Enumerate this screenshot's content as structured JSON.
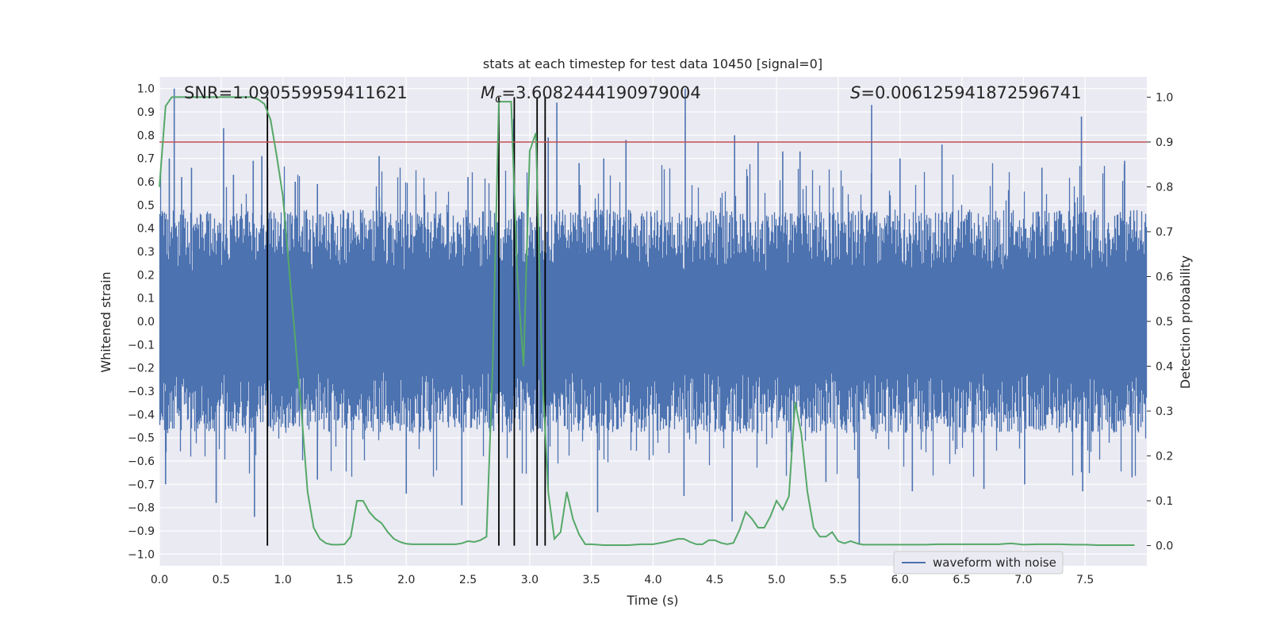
{
  "chart_data": {
    "type": "line",
    "title": "stats at each timestep for test data 10450 [signal=0]",
    "xlabel": "Time (s)",
    "ylabel": "Whitened strain",
    "y2label": "Detection probability",
    "xlim": [
      0.0,
      8.0
    ],
    "ylim": [
      -1.05,
      1.05
    ],
    "y2lim": [
      -0.045,
      1.045
    ],
    "x_ticks": [
      "0.0",
      "0.5",
      "1.0",
      "1.5",
      "2.0",
      "2.5",
      "3.0",
      "3.5",
      "4.0",
      "4.5",
      "5.0",
      "5.5",
      "6.0",
      "6.5",
      "7.0",
      "7.5"
    ],
    "y_ticks": [
      "−1.0",
      "−0.9",
      "−0.8",
      "−0.7",
      "−0.6",
      "−0.5",
      "−0.4",
      "−0.3",
      "−0.2",
      "−0.1",
      "0.0",
      "0.1",
      "0.2",
      "0.3",
      "0.4",
      "0.5",
      "0.6",
      "0.7",
      "0.8",
      "0.9",
      "1.0"
    ],
    "y2_ticks": [
      "0.0",
      "0.1",
      "0.2",
      "0.3",
      "0.4",
      "0.5",
      "0.6",
      "0.7",
      "0.8",
      "0.9",
      "1.0"
    ],
    "grid": true,
    "legend": {
      "position": "bottom-right",
      "entries": [
        "waveform with noise"
      ]
    },
    "annotations": {
      "snr": "SNR=1.090559959411621",
      "mc_symbol": "M",
      "mc_sub": "c",
      "mc_value": "=3.6082444190979004",
      "s_symbol": "S",
      "s_value": "=0.006125941872596741"
    },
    "threshold_line": {
      "y2": 0.9,
      "color": "#c44e52"
    },
    "vertical_markers_x": [
      0.875,
      2.75,
      2.875,
      3.06,
      3.125
    ],
    "colors": {
      "waveform": "#4c72b0",
      "probability": "#55a868",
      "markers": "#000000",
      "background": "#eaeaf2"
    },
    "series": [
      {
        "name": "waveform with noise",
        "envelope": {
          "top_typical": 0.48,
          "bottom_typical": -0.48,
          "positive_spikes": [
            {
              "x": 0.08,
              "y": 0.7
            },
            {
              "x": 0.12,
              "y": 1.0
            },
            {
              "x": 0.18,
              "y": 0.62
            },
            {
              "x": 0.26,
              "y": 0.66
            },
            {
              "x": 0.52,
              "y": 0.83
            },
            {
              "x": 0.6,
              "y": 0.63
            },
            {
              "x": 0.76,
              "y": 0.69
            },
            {
              "x": 0.83,
              "y": 0.71
            },
            {
              "x": 1.1,
              "y": 0.6
            },
            {
              "x": 1.28,
              "y": 0.59
            },
            {
              "x": 1.78,
              "y": 0.71
            },
            {
              "x": 2.5,
              "y": 0.62
            },
            {
              "x": 2.87,
              "y": 0.87
            },
            {
              "x": 3.15,
              "y": 0.79
            },
            {
              "x": 3.22,
              "y": 0.94
            },
            {
              "x": 3.4,
              "y": 0.68
            },
            {
              "x": 3.6,
              "y": 0.7
            },
            {
              "x": 3.78,
              "y": 0.78
            },
            {
              "x": 4.26,
              "y": 1.0
            },
            {
              "x": 4.66,
              "y": 0.8
            },
            {
              "x": 4.85,
              "y": 0.77
            },
            {
              "x": 5.05,
              "y": 0.73
            },
            {
              "x": 5.19,
              "y": 0.73
            },
            {
              "x": 5.77,
              "y": 0.93
            },
            {
              "x": 6.0,
              "y": 0.7
            },
            {
              "x": 6.34,
              "y": 0.76
            },
            {
              "x": 7.15,
              "y": 0.66
            },
            {
              "x": 7.47,
              "y": 0.88
            },
            {
              "x": 7.82,
              "y": 0.69
            }
          ],
          "negative_spikes": [
            {
              "x": 0.05,
              "y": -0.7
            },
            {
              "x": 0.46,
              "y": -0.78
            },
            {
              "x": 0.77,
              "y": -0.84
            },
            {
              "x": 1.28,
              "y": -0.68
            },
            {
              "x": 2.0,
              "y": -0.74
            },
            {
              "x": 2.45,
              "y": -0.79
            },
            {
              "x": 3.15,
              "y": -0.72
            },
            {
              "x": 3.55,
              "y": -0.82
            },
            {
              "x": 4.25,
              "y": -0.75
            },
            {
              "x": 4.64,
              "y": -0.86
            },
            {
              "x": 5.4,
              "y": -0.69
            },
            {
              "x": 5.67,
              "y": -0.96
            },
            {
              "x": 6.1,
              "y": -0.73
            },
            {
              "x": 6.68,
              "y": -0.72
            },
            {
              "x": 7.01,
              "y": -0.7
            },
            {
              "x": 7.48,
              "y": -0.73
            },
            {
              "x": 7.88,
              "y": -0.67
            }
          ]
        }
      },
      {
        "name": "",
        "axis": "right",
        "x": [
          0.0,
          0.05,
          0.1,
          0.15,
          0.2,
          0.3,
          0.4,
          0.5,
          0.6,
          0.7,
          0.75,
          0.8,
          0.85,
          0.9,
          0.95,
          1.0,
          1.05,
          1.1,
          1.15,
          1.2,
          1.25,
          1.3,
          1.35,
          1.4,
          1.45,
          1.5,
          1.55,
          1.6,
          1.65,
          1.7,
          1.75,
          1.8,
          1.85,
          1.9,
          1.95,
          2.0,
          2.05,
          2.1,
          2.2,
          2.3,
          2.4,
          2.45,
          2.5,
          2.55,
          2.6,
          2.65,
          2.7,
          2.75,
          2.8,
          2.85,
          2.9,
          2.95,
          3.0,
          3.05,
          3.1,
          3.15,
          3.2,
          3.25,
          3.3,
          3.35,
          3.4,
          3.45,
          3.5,
          3.6,
          3.7,
          3.8,
          3.9,
          4.0,
          4.1,
          4.2,
          4.25,
          4.3,
          4.35,
          4.4,
          4.45,
          4.5,
          4.55,
          4.6,
          4.65,
          4.7,
          4.75,
          4.8,
          4.85,
          4.9,
          4.95,
          5.0,
          5.05,
          5.1,
          5.15,
          5.2,
          5.25,
          5.3,
          5.35,
          5.4,
          5.45,
          5.5,
          5.55,
          5.6,
          5.65,
          5.7,
          5.75,
          5.8,
          5.85,
          5.9,
          5.95,
          6.0,
          6.05,
          6.1,
          6.2,
          6.3,
          6.4,
          6.5,
          6.6,
          6.7,
          6.8,
          6.9,
          7.0,
          7.1,
          7.2,
          7.3,
          7.4,
          7.5,
          7.6,
          7.7,
          7.8,
          7.9
        ],
        "values": [
          0.8,
          0.98,
          1.0,
          1.0,
          1.0,
          1.0,
          1.0,
          1.0,
          1.0,
          1.0,
          1.0,
          0.995,
          0.985,
          0.95,
          0.87,
          0.78,
          0.62,
          0.46,
          0.3,
          0.12,
          0.04,
          0.015,
          0.005,
          0.002,
          0.002,
          0.003,
          0.02,
          0.1,
          0.1,
          0.075,
          0.06,
          0.05,
          0.03,
          0.015,
          0.008,
          0.004,
          0.003,
          0.003,
          0.003,
          0.003,
          0.003,
          0.005,
          0.01,
          0.008,
          0.012,
          0.02,
          0.4,
          0.99,
          0.99,
          0.99,
          0.6,
          0.4,
          0.88,
          0.92,
          0.4,
          0.12,
          0.015,
          0.03,
          0.12,
          0.06,
          0.025,
          0.003,
          0.003,
          0.001,
          0.001,
          0.001,
          0.003,
          0.003,
          0.008,
          0.015,
          0.015,
          0.008,
          0.003,
          0.003,
          0.012,
          0.012,
          0.006,
          0.003,
          0.006,
          0.035,
          0.075,
          0.06,
          0.04,
          0.04,
          0.065,
          0.1,
          0.08,
          0.11,
          0.32,
          0.25,
          0.12,
          0.04,
          0.02,
          0.02,
          0.03,
          0.01,
          0.005,
          0.01,
          0.005,
          0.002,
          0.002,
          0.002,
          0.002,
          0.002,
          0.002,
          0.002,
          0.002,
          0.002,
          0.002,
          0.003,
          0.003,
          0.003,
          0.003,
          0.003,
          0.003,
          0.005,
          0.002,
          0.003,
          0.003,
          0.003,
          0.002,
          0.002,
          0.001,
          0.001,
          0.001,
          0.001
        ]
      }
    ]
  }
}
